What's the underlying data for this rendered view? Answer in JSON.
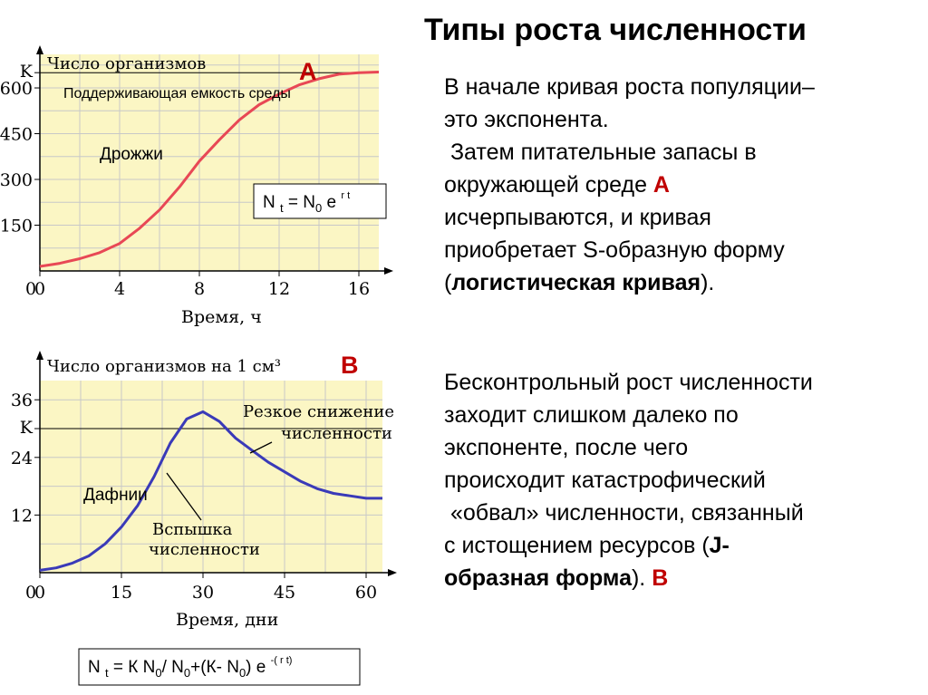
{
  "title": "Типы роста численности",
  "para1": {
    "l1": "В начале кривая роста популяции–",
    "l2": "это экспонента.",
    "l3": " Затем питательные запасы в",
    "l4a": "окружающей среде ",
    "l4b": "А",
    "l5": "исчерпываются, и кривая",
    "l6": "приобретает S-образную форму",
    "l7a": "(",
    "l7b": "логистическая кривая",
    "l7c": ")."
  },
  "para2": {
    "l1": "Бесконтрольный рост численности",
    "l2": "заходит слишком далеко по",
    "l3": "экспоненте, после чего",
    "l4": "происходит катастрофический",
    "l5": " «обвал» численности, связанный",
    "l6a": "с истощением ресурсов (",
    "l6b": "J-",
    "l7a": "образная форма",
    "l7b": "). ",
    "l7c": "В"
  },
  "chart_data": [
    {
      "type": "line",
      "panel_label": "А",
      "ylabel": "Число организмов",
      "xlabel": "Время, ч",
      "x_ticks": [
        "0",
        "4",
        "8",
        "12",
        "16"
      ],
      "y_ticks": [
        "150",
        "300",
        "450",
        "600",
        "K"
      ],
      "xlim": [
        0,
        17
      ],
      "ylim": [
        0,
        710
      ],
      "grid": true,
      "k_value": 650,
      "k_line_label": "Поддерживающая емкость среды",
      "annotation": "Дрожжи",
      "formula": {
        "pre": "N ",
        "sub1": "t",
        "mid": " = N",
        "sub2": "0",
        "post": " e ",
        "sup": "r t"
      },
      "series": [
        {
          "x": [
            0,
            1,
            2,
            3,
            4,
            5,
            6,
            7,
            8,
            9,
            10,
            11,
            12,
            13,
            14,
            15,
            16,
            17
          ],
          "y": [
            15,
            25,
            40,
            60,
            90,
            140,
            200,
            275,
            360,
            430,
            495,
            545,
            580,
            610,
            630,
            645,
            650,
            652
          ]
        }
      ],
      "line_color": "#e84855"
    },
    {
      "type": "line",
      "panel_label": "В",
      "ylabel": "Число организмов на 1 см³",
      "xlabel": "Время, дни",
      "x_ticks": [
        "0",
        "15",
        "30",
        "45",
        "60"
      ],
      "y_ticks": [
        "12",
        "24",
        "K",
        "36"
      ],
      "xlim": [
        0,
        63
      ],
      "ylim": [
        0,
        40
      ],
      "grid": true,
      "k_value": 30,
      "annotation": "Дафнии",
      "callout_peak": {
        "l1": "Резкое снижение",
        "l2": "численности"
      },
      "callout_rise": {
        "l1": "Вспышка",
        "l2": "численности"
      },
      "formula": {
        "pre": "N ",
        "sub1": "t",
        "mid": " = К N",
        "sub2": "0",
        "mid2": "/ N",
        "sub3": "0",
        "mid3": "+(К- N",
        "sub4": "0",
        "post": ") e ",
        "sup": "-( r t)"
      },
      "series": [
        {
          "x": [
            0,
            3,
            6,
            9,
            12,
            15,
            18,
            21,
            24,
            27,
            30,
            33,
            36,
            39,
            42,
            45,
            48,
            51,
            54,
            57,
            60,
            63
          ],
          "y": [
            0.5,
            1,
            2,
            3.5,
            6,
            9.5,
            14,
            20,
            27,
            32,
            33.5,
            31.5,
            28,
            25.5,
            23,
            21,
            19,
            17.5,
            16.5,
            16,
            15.5,
            15.5
          ]
        }
      ],
      "line_color": "#3a3ab8"
    }
  ]
}
